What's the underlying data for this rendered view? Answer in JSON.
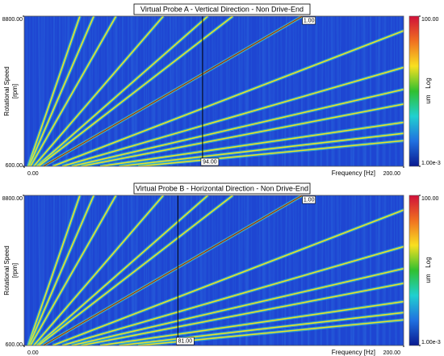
{
  "chart_data": [
    {
      "type": "campbell",
      "title": "Virtual Probe A - Vertical Direction - Non Drive-End",
      "xlabel": "Frequency [Hz]",
      "ylabel": "Rotational Speed",
      "yunit": "[rpm]",
      "xlim": [
        0,
        200
      ],
      "ylim": [
        600,
        8800
      ],
      "xticks": [
        {
          "value": 0,
          "label": "0.00"
        },
        {
          "value": 200,
          "label": "200.00"
        }
      ],
      "yticks": [
        {
          "value": 600,
          "label": "600.00"
        },
        {
          "value": 8800,
          "label": "8800.00"
        }
      ],
      "background": "#1e46d2",
      "line_color": "#e8e22a",
      "orders": [
        0.2,
        0.25,
        0.33,
        0.5,
        0.66,
        0.75,
        1,
        1.5,
        2,
        2.5,
        3,
        4,
        5,
        6
      ],
      "order_marker": {
        "value": 1,
        "label": "1.00"
      },
      "cursor": {
        "value": 94,
        "label": "94.00"
      },
      "colorbar": {
        "label": "Log",
        "unit": "um",
        "log": true,
        "colors": [
          "#d0103a",
          "#f07020",
          "#f8e020",
          "#30c030",
          "#20d0d0",
          "#2070e0",
          "#0a1a90"
        ],
        "ticks": [
          {
            "value": 100,
            "label": "100.00"
          },
          {
            "value": 0.001,
            "label": "1.00e-3"
          }
        ]
      }
    },
    {
      "type": "campbell",
      "title": "Virtual Probe B - Horizontal Direction - Non Drive-End",
      "xlabel": "Frequency [Hz]",
      "ylabel": "Rotational Speed",
      "yunit": "[rpm]",
      "xlim": [
        0,
        200
      ],
      "ylim": [
        600,
        8800
      ],
      "xticks": [
        {
          "value": 0,
          "label": "0.00"
        },
        {
          "value": 200,
          "label": "200.00"
        }
      ],
      "yticks": [
        {
          "value": 600,
          "label": "600.00"
        },
        {
          "value": 8800,
          "label": "8800.00"
        }
      ],
      "background": "#1e46d2",
      "line_color": "#e8e22a",
      "orders": [
        0.2,
        0.25,
        0.33,
        0.5,
        0.66,
        0.75,
        1,
        1.5,
        2,
        2.5,
        3,
        4,
        5,
        6
      ],
      "order_marker": {
        "value": 1,
        "label": "1.00"
      },
      "cursor": {
        "value": 81,
        "label": "81.00"
      },
      "colorbar": {
        "label": "Log",
        "unit": "um",
        "log": true,
        "colors": [
          "#d0103a",
          "#f07020",
          "#f8e020",
          "#30c030",
          "#20d0d0",
          "#2070e0",
          "#0a1a90"
        ],
        "ticks": [
          {
            "value": 100,
            "label": "100.00"
          },
          {
            "value": 0.001,
            "label": "1.00e-3"
          }
        ]
      }
    }
  ]
}
